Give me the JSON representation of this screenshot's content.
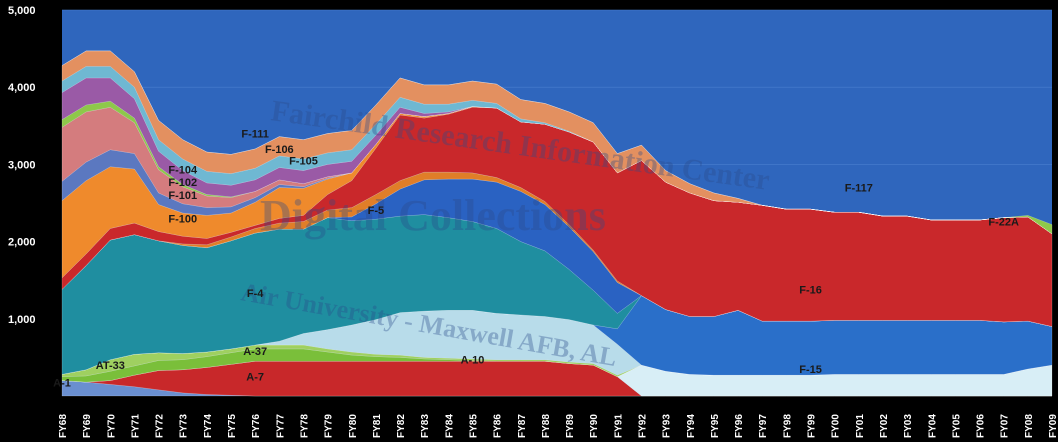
{
  "watermark": {
    "line1": "Fairchild Research Information Center",
    "line2": "Digital Collections",
    "line3": "Air University - Maxwell AFB, AL"
  },
  "chart_data": {
    "type": "area",
    "stacked": true,
    "title": "",
    "xlabel": "",
    "ylabel": "",
    "ylim": [
      0,
      5000
    ],
    "yticks": [
      "1,000",
      "2,000",
      "3,000",
      "4,000",
      "5,000"
    ],
    "ytick_values": [
      1000,
      2000,
      3000,
      4000,
      5000
    ],
    "grid": true,
    "legend": "none (labels drawn on areas)",
    "categories": [
      "FY68",
      "FY69",
      "FY70",
      "FY71",
      "FY72",
      "FY73",
      "FY74",
      "FY75",
      "FY76",
      "FY77",
      "FY78",
      "FY79",
      "FY80",
      "FY81",
      "FY82",
      "FY83",
      "FY84",
      "FY85",
      "FY86",
      "FY87",
      "FY88",
      "FY89",
      "FY90",
      "FY91",
      "FY92",
      "FY93",
      "FY94",
      "FY95",
      "FY96",
      "FY97",
      "FY98",
      "FY99",
      "FY00",
      "FY01",
      "FY02",
      "FY03",
      "FY04",
      "FY05",
      "FY06",
      "FY07",
      "FY08",
      "FY09"
    ],
    "series": [
      {
        "name": "A-1",
        "label": "A-1",
        "color": "#6a8fd0",
        "values": [
          200,
          180,
          150,
          120,
          80,
          40,
          20,
          10,
          0,
          0,
          0,
          0,
          0,
          0,
          0,
          0,
          0,
          0,
          0,
          0,
          0,
          0,
          0,
          0,
          0,
          0,
          0,
          0,
          0,
          0,
          0,
          0,
          0,
          0,
          0,
          0,
          0,
          0,
          0,
          0,
          0,
          0
        ]
      },
      {
        "name": "A-7",
        "label": "A-7",
        "color": "#c8282a",
        "values": [
          0,
          0,
          50,
          150,
          250,
          300,
          350,
          400,
          450,
          450,
          450,
          450,
          450,
          450,
          450,
          450,
          450,
          450,
          450,
          450,
          450,
          420,
          400,
          250,
          0,
          0,
          0,
          0,
          0,
          0,
          0,
          0,
          0,
          0,
          0,
          0,
          0,
          0,
          0,
          0,
          0,
          0
        ]
      },
      {
        "name": "F-15",
        "label": "F-15",
        "color": "#d8eef6",
        "values": [
          0,
          0,
          0,
          0,
          0,
          0,
          0,
          0,
          0,
          0,
          0,
          0,
          0,
          0,
          0,
          0,
          0,
          0,
          0,
          0,
          0,
          0,
          0,
          0,
          400,
          320,
          280,
          270,
          270,
          270,
          270,
          270,
          280,
          280,
          280,
          280,
          280,
          280,
          280,
          280,
          350,
          400
        ]
      },
      {
        "name": "A-37",
        "label": "A-37",
        "color": "#7abf3a",
        "values": [
          50,
          80,
          120,
          120,
          130,
          130,
          140,
          150,
          160,
          160,
          160,
          120,
          80,
          60,
          50,
          30,
          20,
          10,
          0,
          0,
          0,
          0,
          0,
          0,
          0,
          0,
          0,
          0,
          0,
          0,
          0,
          0,
          0,
          0,
          0,
          0,
          0,
          0,
          0,
          0,
          0,
          0
        ]
      },
      {
        "name": "AT-33",
        "label": "AT-33",
        "color": "#9fd060",
        "values": [
          30,
          80,
          150,
          150,
          100,
          80,
          60,
          50,
          50,
          50,
          50,
          40,
          40,
          30,
          30,
          20,
          20,
          20,
          20,
          20,
          20,
          20,
          20,
          20,
          0,
          0,
          0,
          0,
          0,
          0,
          0,
          0,
          0,
          0,
          0,
          0,
          0,
          0,
          0,
          0,
          0,
          0
        ]
      },
      {
        "name": "A-10",
        "label": "A-10",
        "color": "#b8dcea",
        "values": [
          0,
          0,
          0,
          0,
          0,
          0,
          0,
          0,
          0,
          50,
          150,
          250,
          350,
          450,
          550,
          600,
          620,
          630,
          600,
          580,
          560,
          550,
          500,
          400,
          0,
          0,
          0,
          0,
          0,
          0,
          0,
          0,
          0,
          0,
          0,
          0,
          0,
          0,
          0,
          0,
          0,
          0
        ]
      },
      {
        "name": "F-16 (lower)",
        "label": "",
        "color": "#2a6fc9",
        "values": [
          0,
          0,
          0,
          0,
          0,
          0,
          0,
          0,
          0,
          0,
          0,
          0,
          0,
          0,
          0,
          0,
          0,
          0,
          0,
          0,
          0,
          0,
          0,
          200,
          900,
          800,
          750,
          760,
          840,
          700,
          700,
          700,
          700,
          700,
          700,
          700,
          700,
          700,
          700,
          680,
          620,
          500
        ]
      },
      {
        "name": "F-4",
        "label": "F-4",
        "color": "#1f8ea0",
        "values": [
          1100,
          1350,
          1550,
          1550,
          1450,
          1400,
          1350,
          1400,
          1450,
          1450,
          1350,
          1450,
          1350,
          1300,
          1250,
          1250,
          1200,
          1150,
          1100,
          950,
          850,
          650,
          450,
          200,
          0,
          0,
          0,
          0,
          0,
          0,
          0,
          0,
          0,
          0,
          0,
          0,
          0,
          0,
          0,
          0,
          0,
          0
        ]
      },
      {
        "name": "F-16",
        "label": "F-16",
        "color": "#2a62c2",
        "values": [
          0,
          0,
          0,
          0,
          0,
          0,
          0,
          0,
          0,
          0,
          0,
          0,
          50,
          200,
          350,
          450,
          500,
          550,
          600,
          650,
          600,
          550,
          500,
          400,
          0,
          0,
          0,
          0,
          0,
          0,
          0,
          0,
          0,
          0,
          0,
          0,
          0,
          0,
          0,
          0,
          0,
          0
        ]
      },
      {
        "name": "F-5",
        "label": "F-5",
        "color": "#e07e28",
        "values": [
          0,
          0,
          0,
          0,
          0,
          20,
          40,
          50,
          60,
          80,
          100,
          100,
          120,
          120,
          110,
          100,
          90,
          80,
          60,
          50,
          40,
          30,
          20,
          20,
          0,
          0,
          0,
          0,
          0,
          0,
          0,
          0,
          0,
          0,
          0,
          0,
          0,
          0,
          0,
          0,
          0,
          0
        ]
      },
      {
        "name": "F-117 red",
        "label": "",
        "color": "#c9282b",
        "values": [
          150,
          150,
          150,
          150,
          120,
          100,
          80,
          60,
          40,
          60,
          80,
          200,
          350,
          600,
          850,
          700,
          750,
          850,
          900,
          850,
          1000,
          1200,
          1400,
          1400,
          1750,
          1650,
          1600,
          1500,
          1400,
          1500,
          1450,
          1450,
          1400,
          1400,
          1350,
          1350,
          1300,
          1300,
          1300,
          1350,
          1350,
          1200
        ]
      },
      {
        "name": "F-100",
        "label": "F-100",
        "color": "#ef8a2c",
        "values": [
          1000,
          950,
          800,
          700,
          350,
          300,
          300,
          250,
          300,
          400,
          350,
          200,
          100,
          50,
          20,
          20,
          10,
          10,
          0,
          0,
          0,
          0,
          0,
          0,
          0,
          0,
          0,
          0,
          0,
          0,
          0,
          0,
          0,
          0,
          0,
          0,
          0,
          0,
          0,
          0,
          0,
          0
        ]
      },
      {
        "name": "F-101",
        "label": "F-101",
        "color": "#5b78c0",
        "values": [
          250,
          240,
          220,
          200,
          150,
          120,
          100,
          80,
          60,
          40,
          20,
          10,
          0,
          0,
          0,
          0,
          0,
          0,
          0,
          0,
          0,
          0,
          0,
          0,
          0,
          0,
          0,
          0,
          0,
          0,
          0,
          0,
          0,
          0,
          0,
          0,
          0,
          0,
          0,
          0,
          0,
          0
        ]
      },
      {
        "name": "F-102",
        "label": "F-102",
        "color": "#d47c7e",
        "values": [
          700,
          650,
          550,
          400,
          300,
          220,
          150,
          120,
          80,
          60,
          40,
          20,
          0,
          0,
          0,
          0,
          0,
          0,
          0,
          0,
          0,
          0,
          0,
          0,
          0,
          0,
          0,
          0,
          0,
          0,
          0,
          0,
          0,
          0,
          0,
          0,
          0,
          0,
          0,
          0,
          0,
          0
        ]
      },
      {
        "name": "F-104",
        "label": "F-104",
        "color": "#8ec84a",
        "values": [
          100,
          90,
          80,
          60,
          40,
          30,
          20,
          10,
          0,
          0,
          0,
          0,
          0,
          0,
          0,
          0,
          0,
          0,
          0,
          0,
          0,
          0,
          0,
          0,
          0,
          0,
          0,
          0,
          0,
          0,
          0,
          0,
          0,
          0,
          0,
          0,
          0,
          0,
          0,
          0,
          0,
          0
        ]
      },
      {
        "name": "F-105",
        "label": "F-105",
        "color": "#9a5aa6",
        "values": [
          350,
          350,
          300,
          250,
          200,
          180,
          150,
          150,
          150,
          160,
          170,
          160,
          150,
          120,
          80,
          40,
          20,
          0,
          0,
          0,
          0,
          0,
          0,
          0,
          0,
          0,
          0,
          0,
          0,
          0,
          0,
          0,
          0,
          0,
          0,
          0,
          0,
          0,
          0,
          0,
          0,
          0
        ]
      },
      {
        "name": "F-106",
        "label": "F-106",
        "color": "#6fb8d2",
        "values": [
          150,
          150,
          150,
          150,
          150,
          150,
          150,
          150,
          150,
          150,
          150,
          150,
          150,
          140,
          130,
          120,
          100,
          80,
          60,
          40,
          20,
          10,
          0,
          0,
          0,
          0,
          0,
          0,
          0,
          0,
          0,
          0,
          0,
          0,
          0,
          0,
          0,
          0,
          0,
          0,
          0,
          0
        ]
      },
      {
        "name": "F-111",
        "label": "F-111",
        "color": "#e39060",
        "values": [
          200,
          200,
          200,
          200,
          250,
          250,
          250,
          250,
          250,
          250,
          250,
          250,
          250,
          250,
          250,
          250,
          250,
          250,
          250,
          250,
          250,
          250,
          250,
          250,
          200,
          150,
          120,
          100,
          50,
          0,
          0,
          0,
          0,
          0,
          0,
          0,
          0,
          0,
          0,
          0,
          0,
          0
        ]
      },
      {
        "name": "F-22A",
        "label": "F-22A",
        "color": "#8ec84a",
        "values": [
          0,
          0,
          0,
          0,
          0,
          0,
          0,
          0,
          0,
          0,
          0,
          0,
          0,
          0,
          0,
          0,
          0,
          0,
          0,
          0,
          0,
          0,
          0,
          0,
          0,
          0,
          0,
          0,
          0,
          0,
          0,
          0,
          0,
          0,
          0,
          0,
          0,
          0,
          0,
          0,
          20,
          120
        ]
      }
    ],
    "labels": [
      {
        "text": "A-1",
        "cat": 0,
        "y": 120
      },
      {
        "text": "AT-33",
        "cat": 2,
        "y": 350
      },
      {
        "text": "A-37",
        "cat": 8,
        "y": 530
      },
      {
        "text": "A-7",
        "cat": 8,
        "y": 200
      },
      {
        "text": "A-10",
        "cat": 17,
        "y": 420
      },
      {
        "text": "F-4",
        "cat": 8,
        "y": 1280
      },
      {
        "text": "F-5",
        "cat": 13,
        "y": 2360
      },
      {
        "text": "F-100",
        "cat": 5,
        "y": 2250
      },
      {
        "text": "F-101",
        "cat": 5,
        "y": 2550
      },
      {
        "text": "F-102",
        "cat": 5,
        "y": 2720
      },
      {
        "text": "F-104",
        "cat": 5,
        "y": 2880
      },
      {
        "text": "F-105",
        "cat": 10,
        "y": 3000
      },
      {
        "text": "F-106",
        "cat": 9,
        "y": 3150
      },
      {
        "text": "F-111",
        "cat": 8,
        "y": 3350
      },
      {
        "text": "F-16",
        "cat": 31,
        "y": 1330
      },
      {
        "text": "F-15",
        "cat": 31,
        "y": 300
      },
      {
        "text": "F-117",
        "cat": 33,
        "y": 2650
      },
      {
        "text": "F-22A",
        "cat": 39,
        "y": 2210
      }
    ],
    "background_series": {
      "name": "F-117 (remainder)",
      "color": "#2f66bd"
    }
  }
}
